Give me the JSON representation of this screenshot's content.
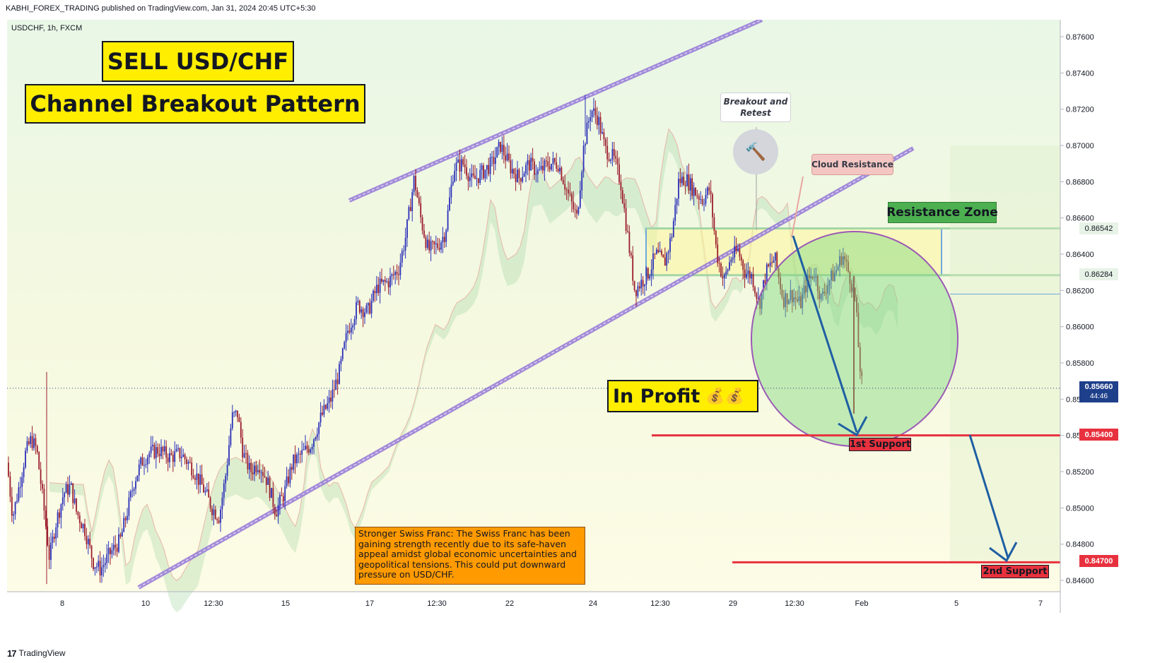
{
  "header": {
    "publisher_line": "KABHI_FOREX_TRADING published on TradingView.com, Jan 31, 2024 20:45 UTC+5:30"
  },
  "chart": {
    "symbol_line": "USDCHF, 1h, FXCM"
  },
  "footer": {
    "logo_mark": "17",
    "brand": "TradingView"
  },
  "annotations": {
    "title_main": "SELL USD/CHF",
    "title_pattern": "Channel Breakout Pattern",
    "breakout_retest": "Breakout and Retest",
    "cloud_resistance": "Cloud Resistance",
    "resistance_zone": "Resistance Zone",
    "in_profit": "In Profit",
    "profit_icons": "💰💰",
    "first_support": "1st Support",
    "second_support": "2nd Support",
    "note": "Stronger Swiss Franc: The Swiss Franc has been gaining strength recently due to its safe-haven appeal amidst global economic uncertainties and geopolitical tensions. This could put downward pressure on USD/CHF."
  },
  "price_tags": {
    "last_price": "0.85660",
    "countdown": "44:46",
    "zone_top": "0.86542",
    "zone_bottom": "0.86284",
    "first_support": "0.85400",
    "second_support": "0.84700"
  },
  "colors": {
    "bull": "#2a2fb8",
    "bear": "#9b1c2c",
    "channel": "#8e6fd6",
    "support_line": "#e8313e",
    "label_yellow": "#ffee00",
    "zone_green": "#4caf50",
    "profit_circle": "#7fd67f",
    "arrow_blue": "#1f5fa3",
    "note_orange": "#ff9a00"
  },
  "chart_data": {
    "type": "candlestick",
    "symbol": "USDCHF",
    "timeframe": "1h",
    "source": "FXCM",
    "y_ticks": [
      "0.87600",
      "0.87400",
      "0.87200",
      "0.87000",
      "0.86800",
      "0.86600",
      "0.86400",
      "0.86200",
      "0.86000",
      "0.85800",
      "0.85600",
      "0.85400",
      "0.85200",
      "0.85000",
      "0.84800",
      "0.84600"
    ],
    "x_ticks": [
      "8",
      "10",
      "12:30",
      "15",
      "17",
      "12:30",
      "22",
      "24",
      "12:30",
      "29",
      "12:30",
      "Feb",
      "5",
      "7"
    ],
    "ylim": [
      0.8455,
      0.8775
    ],
    "price_path": [
      [
        0,
        0.8525
      ],
      [
        8,
        0.8495
      ],
      [
        16,
        0.851
      ],
      [
        26,
        0.853
      ],
      [
        34,
        0.8538
      ],
      [
        42,
        0.8532
      ],
      [
        52,
        0.85
      ],
      [
        60,
        0.8472
      ],
      [
        68,
        0.849
      ],
      [
        80,
        0.8508
      ],
      [
        90,
        0.8512
      ],
      [
        98,
        0.8498
      ],
      [
        110,
        0.8488
      ],
      [
        122,
        0.847
      ],
      [
        132,
        0.8466
      ],
      [
        146,
        0.8475
      ],
      [
        160,
        0.8482
      ],
      [
        170,
        0.8498
      ],
      [
        180,
        0.8515
      ],
      [
        190,
        0.8525
      ],
      [
        200,
        0.853
      ],
      [
        214,
        0.8532
      ],
      [
        230,
        0.8528
      ],
      [
        246,
        0.853
      ],
      [
        262,
        0.8522
      ],
      [
        276,
        0.8512
      ],
      [
        290,
        0.85
      ],
      [
        300,
        0.8495
      ],
      [
        310,
        0.852
      ],
      [
        318,
        0.855
      ],
      [
        326,
        0.8552
      ],
      [
        334,
        0.853
      ],
      [
        344,
        0.852
      ],
      [
        356,
        0.8525
      ],
      [
        368,
        0.8515
      ],
      [
        380,
        0.8498
      ],
      [
        392,
        0.8508
      ],
      [
        404,
        0.8525
      ],
      [
        418,
        0.853
      ],
      [
        430,
        0.8535
      ],
      [
        444,
        0.855
      ],
      [
        458,
        0.856
      ],
      [
        470,
        0.8575
      ],
      [
        482,
        0.8598
      ],
      [
        496,
        0.8612
      ],
      [
        510,
        0.8608
      ],
      [
        524,
        0.8622
      ],
      [
        540,
        0.8625
      ],
      [
        554,
        0.8632
      ],
      [
        564,
        0.865
      ],
      [
        576,
        0.8682
      ],
      [
        586,
        0.8658
      ],
      [
        596,
        0.8642
      ],
      [
        610,
        0.8645
      ],
      [
        620,
        0.8652
      ],
      [
        632,
        0.8688
      ],
      [
        646,
        0.869
      ],
      [
        658,
        0.868
      ],
      [
        672,
        0.8685
      ],
      [
        686,
        0.869
      ],
      [
        698,
        0.87
      ],
      [
        712,
        0.8688
      ],
      [
        724,
        0.8682
      ],
      [
        738,
        0.869
      ],
      [
        752,
        0.8685
      ],
      [
        766,
        0.869
      ],
      [
        780,
        0.869
      ],
      [
        792,
        0.8675
      ],
      [
        806,
        0.866
      ],
      [
        816,
        0.87
      ],
      [
        826,
        0.872
      ],
      [
        836,
        0.8715
      ],
      [
        846,
        0.8698
      ],
      [
        858,
        0.8693
      ],
      [
        868,
        0.868
      ],
      [
        878,
        0.865
      ],
      [
        888,
        0.862
      ],
      [
        898,
        0.8625
      ],
      [
        908,
        0.863
      ],
      [
        918,
        0.864
      ],
      [
        930,
        0.8635
      ],
      [
        940,
        0.865
      ],
      [
        950,
        0.868
      ],
      [
        960,
        0.8682
      ],
      [
        972,
        0.8675
      ],
      [
        984,
        0.867
      ],
      [
        994,
        0.8676
      ],
      [
        1004,
        0.864
      ],
      [
        1014,
        0.8625
      ],
      [
        1024,
        0.8638
      ],
      [
        1034,
        0.8642
      ],
      [
        1044,
        0.863
      ],
      [
        1054,
        0.8628
      ],
      [
        1064,
        0.8612
      ],
      [
        1074,
        0.863
      ],
      [
        1086,
        0.8638
      ],
      [
        1098,
        0.8615
      ],
      [
        1110,
        0.8618
      ],
      [
        1122,
        0.8612
      ],
      [
        1132,
        0.8625
      ],
      [
        1142,
        0.863
      ],
      [
        1152,
        0.8615
      ],
      [
        1162,
        0.8625
      ],
      [
        1172,
        0.863
      ],
      [
        1182,
        0.864
      ],
      [
        1192,
        0.8628
      ],
      [
        1200,
        0.8615
      ],
      [
        1206,
        0.858
      ],
      [
        1210,
        0.8566
      ]
    ]
  }
}
